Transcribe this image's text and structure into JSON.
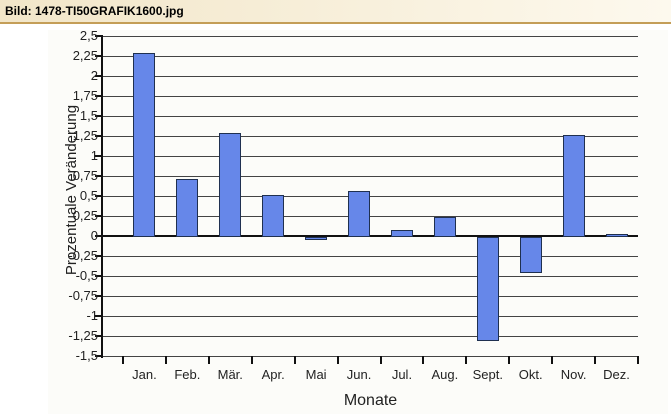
{
  "window": {
    "title": "Bild: 1478-TI50GRAFIK1600.jpg"
  },
  "colors": {
    "header_bg_left": "#f2e6c9",
    "header_bg_right": "#fdf9ee",
    "header_border": "#c49e58",
    "chart_bg": "#fcfcf9",
    "bar_fill": "#6687e9",
    "bar_border": "#1f3050",
    "gridline": "#444444",
    "axis": "#111111",
    "label_text": "#222222"
  },
  "chart_data": {
    "type": "bar",
    "title": "",
    "xlabel": "Monate",
    "ylabel": "Prozentuale Veränderung",
    "categories": [
      "Jan.",
      "Feb.",
      "Mär.",
      "Apr.",
      "Mai",
      "Jun.",
      "Jul.",
      "Aug.",
      "Sept.",
      "Okt.",
      "Nov.",
      "Dez."
    ],
    "values": [
      2.3,
      0.72,
      1.3,
      0.52,
      -0.04,
      0.57,
      0.09,
      0.25,
      -1.3,
      -0.45,
      1.27,
      0.04
    ],
    "ylim": [
      -1.5,
      2.5
    ],
    "ytick_step": 0.25,
    "ytick_labels": [
      "2,5",
      "2,25",
      "2",
      "1,75",
      "1,5",
      "1,25",
      "1",
      "0,75",
      "0,5",
      "0,25",
      "0",
      "-0,25",
      "-0,5",
      "-0,75",
      "-1",
      "-1,25",
      "-1,5"
    ],
    "grid": true,
    "legend_position": "none"
  }
}
